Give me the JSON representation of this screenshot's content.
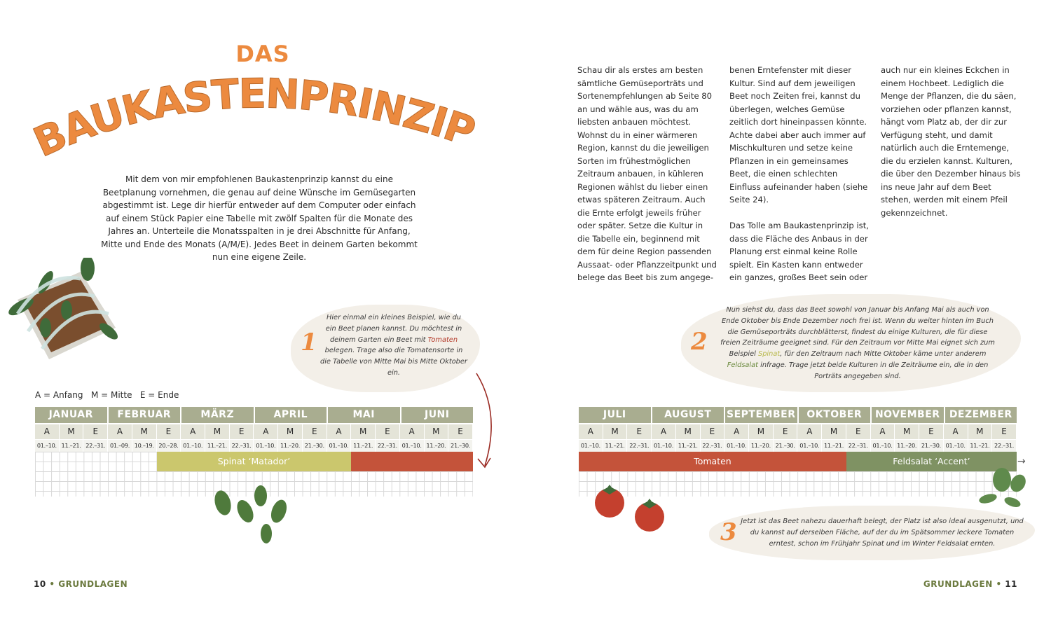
{
  "title": {
    "small": "DAS",
    "large": "BAUKASTENPRINZIP"
  },
  "intro": "Mit dem von mir empfohlenen Baukastenprinzip kannst du eine Beetplanung vornehmen, die genau auf deine Wünsche im Gemüsegarten abgestimmt ist. Lege dir hierfür entweder auf dem Computer oder einfach auf einem Stück Papier eine Tabelle mit zwölf Spalten für die Monate des Jahres an. Unterteile die Monatsspalten in je drei Abschnitte für Anfang, Mitte und Ende des Monats (A/M/E). Jedes Beet in deinem Garten bekommt nun eine eigene Zeile.",
  "columns": {
    "col1": "Schau dir als erstes am besten sämtliche Gemüseporträts und Sortenempfehlungen ab Seite 80 an und wähle aus, was du am liebsten anbauen möchtest. Wohnst du in einer wärmeren Region, kannst du die jeweiligen Sorten im frühestmöglichen Zeitraum anbauen, in kühleren Regionen wählst du lieber einen etwas späteren Zeitraum. Auch die Ernte erfolgt jeweils früher oder später. Setze die Kultur in die Tabelle ein, beginnend mit dem für deine Region passenden Aussaat- oder Pflanzzeitpunkt und belege das Beet bis zum angege-",
    "col2a": "benen Erntefenster mit dieser Kultur. Sind auf dem jeweiligen Beet noch Zeiten frei, kannst du überlegen, welches Gemüse zeitlich dort hineinpassen könnte. Achte dabei aber auch immer auf Mischkulturen und setze keine Pflanzen in ein gemeinsames Beet, die einen schlechten Einfluss aufeinander haben (siehe Seite 24).",
    "col2b": "Das Tolle am Baukastenprinzip ist, dass die Fläche des Anbaus in der Planung erst einmal keine Rolle spielt. Ein Kasten kann entweder ein ganzes, großes Beet sein oder",
    "col3": "auch nur ein kleines Eckchen in einem Hochbeet. Lediglich die Menge der Pflanzen, die du säen, vorziehen oder pflanzen kannst, hängt vom Platz ab, der dir zur Verfügung steht, und damit natürlich auch die Erntemenge, die du erzielen kannst. Kulturen, die über den Dezember hinaus bis ins neue Jahr auf dem Beet stehen, werden mit einem Pfeil gekennzeichnet."
  },
  "callouts": [
    {
      "number": "1",
      "pre": "Hier einmal ein kleines Beispiel, wie du ein Beet planen kannst. Du möchtest in deinem Garten ein Beet mit ",
      "hl": "Tomaten",
      "post": " belegen. Trage also die Tomatensorte in die Tabelle von Mitte Mai bis Mitte Oktober ein."
    },
    {
      "number": "2",
      "pre": "Nun siehst du, dass das Beet sowohl von Januar bis Anfang Mai als auch von Ende Oktober bis Ende Dezember noch frei ist. Wenn du weiter hinten im Buch die Gemüseporträts durchblätterst, findest du einige Kulturen, die für diese freien Zeiträume geeignet sind. Für den Zeitraum vor Mitte Mai eignet sich zum Beispiel ",
      "hl1": "Spinat",
      "mid": ", für den Zeitraum nach Mitte Oktober käme unter anderem ",
      "hl2": "Feldsalat",
      "post": " infrage. Trage jetzt beide Kulturen in die Zeiträume ein, die in den Porträts angegeben sind."
    },
    {
      "number": "3",
      "text": "Jetzt ist das Beet nahezu dauerhaft belegt, der Platz ist also ideal ausgenutzt, und du kannst auf derselben Fläche, auf der du im Spätsommer leckere Tomaten erntest, schon im Frühjahr Spinat und im Winter Feldsalat ernten."
    }
  ],
  "legend": "A = Anfang   M = Mitte   E = Ende",
  "table_left": {
    "months": [
      "JANUAR",
      "FEBRUAR",
      "MÄRZ",
      "APRIL",
      "MAI",
      "JUNI"
    ],
    "ame": [
      "A",
      "M",
      "E",
      "A",
      "M",
      "E",
      "A",
      "M",
      "E",
      "A",
      "M",
      "E",
      "A",
      "M",
      "E",
      "A",
      "M",
      "E"
    ],
    "dates": [
      "01.–10.",
      "11.–21.",
      "22.–31.",
      "01.–09.",
      "10.–19.",
      "20.–28.",
      "01.–10.",
      "11.–21.",
      "22.–31.",
      "01.–10.",
      "11.–20.",
      "21.–30.",
      "01.–10.",
      "11.–21.",
      "22.–31.",
      "01.–10.",
      "11.–20.",
      "21.–30."
    ],
    "bars": [
      {
        "label": "Spinat ‘Matador’",
        "start_period": "Februar E",
        "end_period": "Mai A",
        "color": "#cbc76d"
      },
      {
        "label": "",
        "start_period": "Mai M",
        "end_period": "Juni E",
        "color": "#c4533a"
      }
    ]
  },
  "table_right": {
    "months": [
      "JULI",
      "AUGUST",
      "SEPTEMBER",
      "OKTOBER",
      "NOVEMBER",
      "DEZEMBER"
    ],
    "ame": [
      "A",
      "M",
      "E",
      "A",
      "M",
      "E",
      "A",
      "M",
      "E",
      "A",
      "M",
      "E",
      "A",
      "M",
      "E",
      "A",
      "M",
      "E"
    ],
    "dates": [
      "01.–10.",
      "11.–21.",
      "22.–31.",
      "01.–10.",
      "11.–21.",
      "22.–31.",
      "01.–10.",
      "11.–20.",
      "21.–30.",
      "01.–10.",
      "11.–21.",
      "22.–31.",
      "01.–10.",
      "11.–20.",
      "21.–30.",
      "01.–10.",
      "11.–21.",
      "22.–31."
    ],
    "bars": [
      {
        "label": "Tomaten",
        "start_period": "Juli A",
        "end_period": "Oktober M",
        "color": "#c4533a"
      },
      {
        "label": "Feldsalat ‘Accent’",
        "start_period": "Oktober E",
        "end_period": "Dezember E",
        "color": "#7f9263"
      }
    ],
    "continue_arrow": "→"
  },
  "footer": {
    "left_num": "10",
    "left_label": "GRUNDLAGEN",
    "right_label": "GRUNDLAGEN",
    "right_num": "11",
    "bullet": "•"
  },
  "colors": {
    "orange": "#ec8a3f",
    "sage": "#a9ad90",
    "tomato": "#c4533a",
    "spinach": "#cbc76d",
    "feldsalat": "#7f9263"
  }
}
